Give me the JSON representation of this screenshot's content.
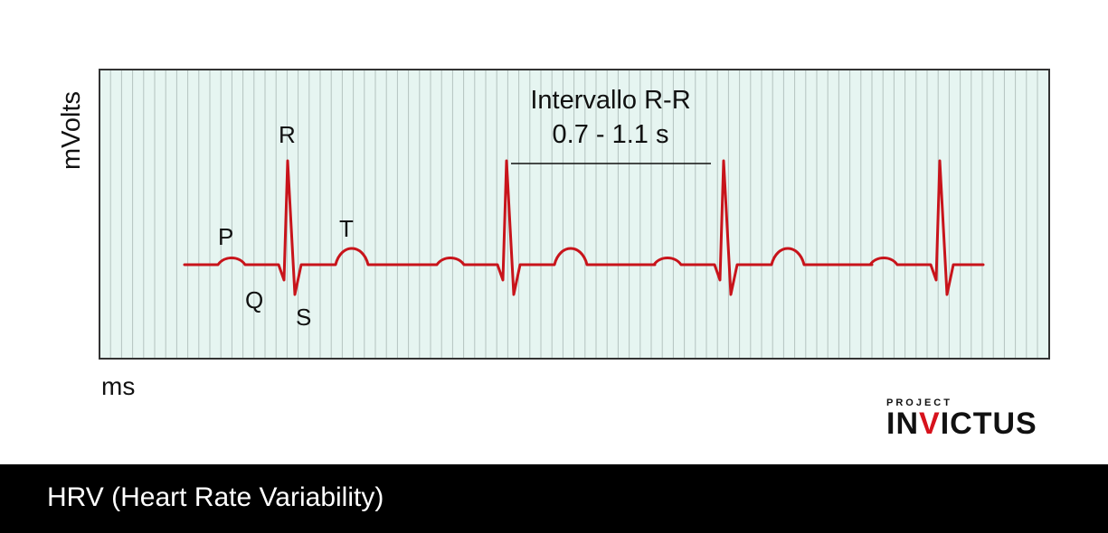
{
  "diagram": {
    "y_axis_label": "mVolts",
    "x_axis_label": "ms",
    "wave_labels": {
      "p": "P",
      "q": "Q",
      "r": "R",
      "s": "S",
      "t": "T"
    },
    "interval": {
      "title": "Intervallo R-R",
      "range": "0.7 - 1.1 s"
    },
    "beat_count": 4,
    "colors": {
      "trace": "#c8141b",
      "grid_background": "#e6f5f1",
      "grid_lines": "#b4c3c0",
      "frame": "#333333"
    }
  },
  "logo": {
    "small_text": "PROJECT",
    "main_text_left": "IN",
    "main_text_accent": "V",
    "main_text_right": "ICTUS",
    "accent_color": "#d7121c"
  },
  "footer": {
    "title": "HRV (Heart Rate Variability)"
  }
}
